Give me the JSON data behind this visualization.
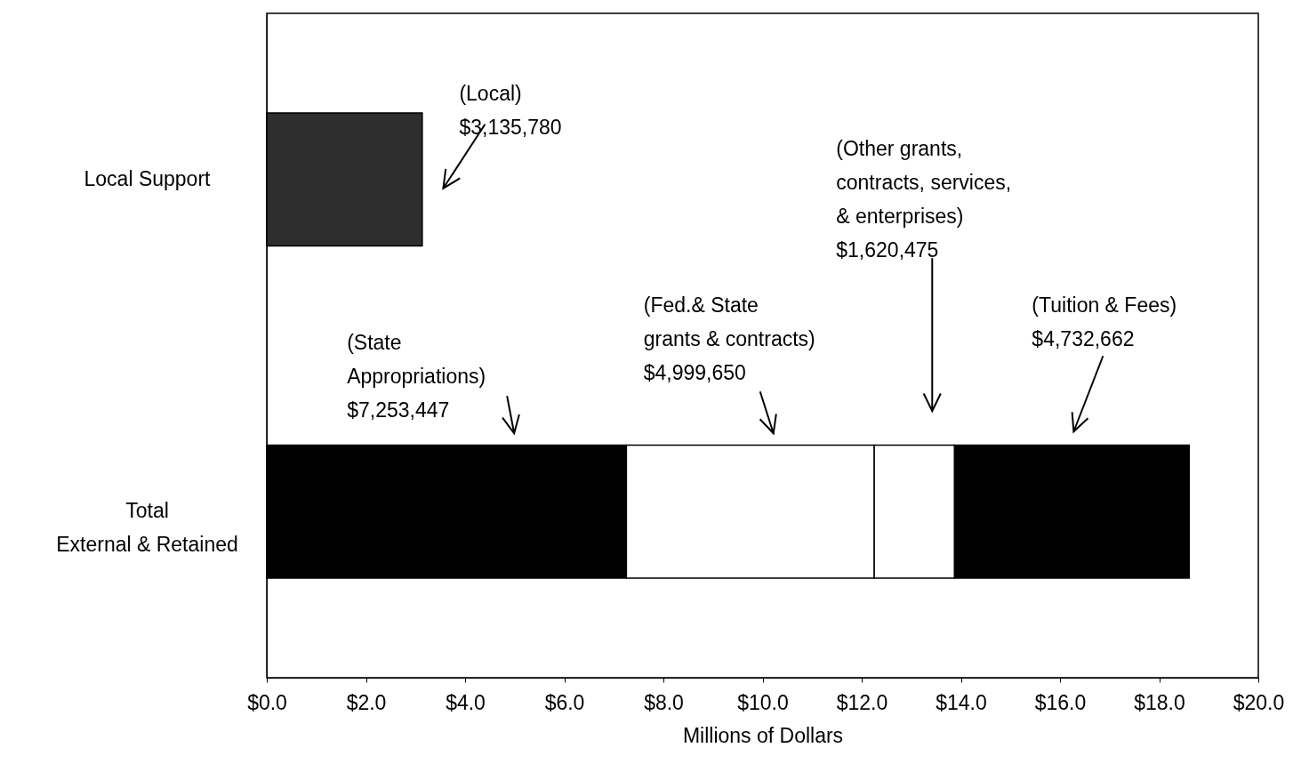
{
  "chart_data": {
    "type": "bar",
    "orientation": "horizontal",
    "stacked": true,
    "categories": [
      "Local Support",
      "Total\nExternal & Retained"
    ],
    "series": [
      {
        "color": "#2e2e2e",
        "values": [
          3.13578,
          null
        ]
      },
      {
        "color": "#000000",
        "values": [
          null,
          7.253447
        ]
      },
      {
        "color": "#ffffff",
        "values": [
          null,
          4.99965
        ]
      },
      {
        "color": "#ffffff",
        "values": [
          null,
          1.620475
        ]
      },
      {
        "color": "#000000",
        "values": [
          null,
          4.732662
        ]
      }
    ],
    "annotations": [
      "(Local)\n$3,135,780",
      "(State\nAppropriations)\n$7,253,447",
      "(Fed.& State\ngrants & contracts)\n$4,999,650",
      "(Other grants,\ncontracts, services,\n& enterprises)\n$1,620,475",
      "(Tuition & Fees)\n$4,732,662"
    ],
    "xlabel": "Millions of Dollars",
    "xlim": [
      0,
      20
    ],
    "xticks": [
      {
        "value": 0,
        "label": "$0.0"
      },
      {
        "value": 2,
        "label": "$2.0"
      },
      {
        "value": 4,
        "label": "$4.0"
      },
      {
        "value": 6,
        "label": "$6.0"
      },
      {
        "value": 8,
        "label": "$8.0"
      },
      {
        "value": 10,
        "label": "$10.0"
      },
      {
        "value": 12,
        "label": "$12.0"
      },
      {
        "value": 14,
        "label": "$14.0"
      },
      {
        "value": 16,
        "label": "$16.0"
      },
      {
        "value": 18,
        "label": "$18.0"
      },
      {
        "value": 20,
        "label": "$20.0"
      }
    ]
  }
}
